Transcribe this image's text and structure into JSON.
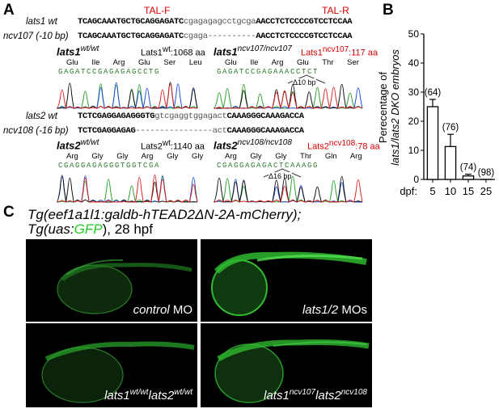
{
  "panels": {
    "a": "A",
    "b": "B",
    "c": "C"
  },
  "panel_a": {
    "tal_f": "TAL-F",
    "tal_r": "TAL-R",
    "lats1_wt_label": "lats1 wt",
    "lats1_wt_seq_a": "TCAGCAAATGCTGCAGGAGATC",
    "lats1_wt_seq_b": "cgagagagcctgcga",
    "lats1_wt_seq_c": "AACCTCTCCCCGTCCTCCAA",
    "ncv107_label": "ncv107 (-10 bp)",
    "ncv107_seq_a": "TCAGCAAATGCTGCAGGAGATC",
    "ncv107_seq_b": "cgaga----------",
    "ncv107_seq_c": "AACCTCTCCCCGTCCTCCAA",
    "chrom1_left": {
      "gene": "lats1",
      "genotype": "wt/wt",
      "protein": "Lats1",
      "protein_sup": "wt",
      "length": ":1068 aa",
      "aa": [
        "Glu",
        "Ile",
        "Arg",
        "Glu",
        "Ser",
        "Leu"
      ],
      "bases": "GAGATCCGAGAGAGCCTG"
    },
    "chrom1_right": {
      "gene": "lats1",
      "genotype": "ncv107/ncv107",
      "protein": "Lats1",
      "protein_sup": "ncv107",
      "length": ":117 aa",
      "aa": [
        "Glu",
        "Ile",
        "Arg",
        "Glu",
        "Thr",
        "Ser"
      ],
      "bases": "GAGATCCGAGAAACCTCT",
      "delta": "Δ10 bp"
    },
    "lats2_wt_label": "lats2 wt",
    "lats2_wt_seq_a": "TCTCGAGGAGAGGGTG",
    "lats2_wt_seq_b": "gtcgaggtggagact",
    "lats2_wt_seq_c": "CAAAGGGCAAAGACCA",
    "ncv108_label": "ncv108 (-16 bp)",
    "ncv108_seq_a": "TCTCGAGGAGAG",
    "ncv108_seq_b": "----------------act",
    "ncv108_seq_c": "CAAAGGGCAAAGACCA",
    "chrom2_left": {
      "gene": "lats2",
      "genotype": "wt/wt",
      "protein": "Lats2",
      "protein_sup": "wt",
      "length": ":1140 aa",
      "aa": [
        "Arg",
        "Gly",
        "Gly",
        "Arg",
        "Gly",
        "Gly"
      ],
      "bases": "CGAGGAGAGGGTGGTCGA"
    },
    "chrom2_right": {
      "gene": "lats2",
      "genotype": "ncv108/ncv108",
      "protein": "Lats2",
      "protein_sup": "ncv108",
      "length": ":78 aa",
      "aa": [
        "Arg",
        "Gly",
        "Gly",
        "Thr",
        "Gln",
        "Arg"
      ],
      "bases": "CGAGGAGAGACTCAAAGG",
      "delta": "Δ16 bp"
    }
  },
  "chart_data": {
    "type": "bar",
    "categories": [
      "5",
      "10",
      "15",
      "25"
    ],
    "values": [
      25,
      11.3,
      1.2,
      0
    ],
    "errors": [
      2.5,
      4.2,
      0.6,
      0
    ],
    "annotations": [
      "(64)",
      "(76)",
      "(74)",
      "(98)"
    ],
    "ylabel_line1": "Perecentage of",
    "ylabel_line2": "lats1/lats2 DKO embryos",
    "xlabel": "dpf:",
    "yticks": [
      0,
      10,
      20,
      30,
      40,
      50
    ],
    "ylim": [
      0,
      50
    ]
  },
  "panel_c": {
    "title_line1": "Tg(eef1a1l1:galdb-hTEAD2ΔN-2A-mCherry);",
    "title_line2_a": "Tg(uas:",
    "title_line2_gfp": "GFP",
    "title_line2_b": "), 28 hpf",
    "gfp_color": "#22cc22",
    "tiles": [
      {
        "label_a": "control",
        "label_b": " MO"
      },
      {
        "label_a": "lats1/2",
        "label_b": " MOs"
      },
      {
        "g1": "lats1",
        "s1": "wt/wt",
        "g2": "lats2",
        "s2": "wt/wt"
      },
      {
        "g1": "lats1",
        "s1": "ncv107",
        "g2": "lats2",
        "s2": "ncv108"
      }
    ]
  },
  "trace_colors": {
    "A": "#2ca02c",
    "C": "#1f4fd6",
    "G": "#111111",
    "T": "#d62728"
  }
}
